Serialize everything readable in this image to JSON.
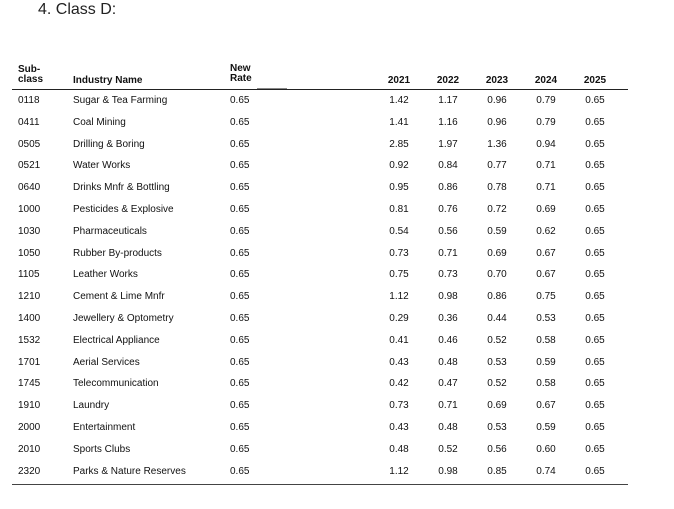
{
  "heading": "4.  Class D:",
  "table": {
    "headers": {
      "subclass": "Sub-\nclass",
      "industry": "Industry Name",
      "rate": "New\nRate",
      "years": [
        "2021",
        "2022",
        "2023",
        "2024",
        "2025"
      ]
    },
    "rows": [
      {
        "sub": "0118",
        "name": "Sugar & Tea Farming",
        "rate": "0.65",
        "vals": [
          "1.42",
          "1.17",
          "0.96",
          "0.79",
          "0.65"
        ]
      },
      {
        "sub": "0411",
        "name": "Coal Mining",
        "rate": "0.65",
        "vals": [
          "1.41",
          "1.16",
          "0.96",
          "0.79",
          "0.65"
        ]
      },
      {
        "sub": "0505",
        "name": "Drilling & Boring",
        "rate": "0.65",
        "vals": [
          "2.85",
          "1.97",
          "1.36",
          "0.94",
          "0.65"
        ]
      },
      {
        "sub": "0521",
        "name": "Water Works",
        "rate": "0.65",
        "vals": [
          "0.92",
          "0.84",
          "0.77",
          "0.71",
          "0.65"
        ]
      },
      {
        "sub": "0640",
        "name": "Drinks Mnfr & Bottling",
        "rate": "0.65",
        "vals": [
          "0.95",
          "0.86",
          "0.78",
          "0.71",
          "0.65"
        ]
      },
      {
        "sub": "1000",
        "name": "Pesticides & Explosive",
        "rate": "0.65",
        "vals": [
          "0.81",
          "0.76",
          "0.72",
          "0.69",
          "0.65"
        ]
      },
      {
        "sub": "1030",
        "name": "Pharmaceuticals",
        "rate": "0.65",
        "vals": [
          "0.54",
          "0.56",
          "0.59",
          "0.62",
          "0.65"
        ]
      },
      {
        "sub": "1050",
        "name": "Rubber By-products",
        "rate": "0.65",
        "vals": [
          "0.73",
          "0.71",
          "0.69",
          "0.67",
          "0.65"
        ]
      },
      {
        "sub": "1105",
        "name": "Leather Works",
        "rate": "0.65",
        "vals": [
          "0.75",
          "0.73",
          "0.70",
          "0.67",
          "0.65"
        ]
      },
      {
        "sub": "1210",
        "name": "Cement & Lime Mnfr",
        "rate": "0.65",
        "vals": [
          "1.12",
          "0.98",
          "0.86",
          "0.75",
          "0.65"
        ]
      },
      {
        "sub": "1400",
        "name": "Jewellery & Optometry",
        "rate": "0.65",
        "vals": [
          "0.29",
          "0.36",
          "0.44",
          "0.53",
          "0.65"
        ]
      },
      {
        "sub": "1532",
        "name": "Electrical Appliance",
        "rate": "0.65",
        "vals": [
          "0.41",
          "0.46",
          "0.52",
          "0.58",
          "0.65"
        ]
      },
      {
        "sub": "1701",
        "name": "Aerial Services",
        "rate": "0.65",
        "vals": [
          "0.43",
          "0.48",
          "0.53",
          "0.59",
          "0.65"
        ]
      },
      {
        "sub": "1745",
        "name": "Telecommunication",
        "rate": "0.65",
        "vals": [
          "0.42",
          "0.47",
          "0.52",
          "0.58",
          "0.65"
        ]
      },
      {
        "sub": "1910",
        "name": "Laundry",
        "rate": "0.65",
        "vals": [
          "0.73",
          "0.71",
          "0.69",
          "0.67",
          "0.65"
        ]
      },
      {
        "sub": "2000",
        "name": "Entertainment",
        "rate": "0.65",
        "vals": [
          "0.43",
          "0.48",
          "0.53",
          "0.59",
          "0.65"
        ]
      },
      {
        "sub": "2010",
        "name": "Sports Clubs",
        "rate": "0.65",
        "vals": [
          "0.48",
          "0.52",
          "0.56",
          "0.60",
          "0.65"
        ]
      },
      {
        "sub": "2320",
        "name": "Parks & Nature Reserves",
        "rate": "0.65",
        "vals": [
          "1.12",
          "0.98",
          "0.85",
          "0.74",
          "0.65"
        ]
      }
    ]
  }
}
